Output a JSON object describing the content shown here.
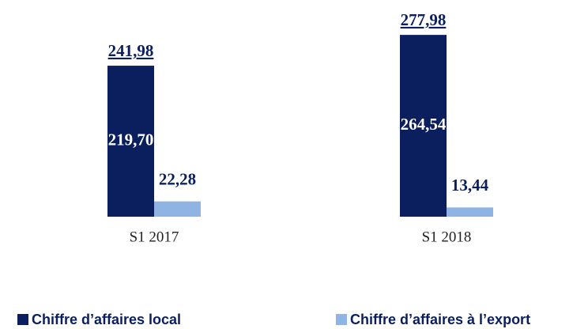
{
  "chart_data": {
    "type": "bar",
    "categories": [
      "S1 2017",
      "S1 2018"
    ],
    "series": [
      {
        "name": "Chiffre d’affaires local",
        "color": "#0b1f5e",
        "values": [
          219.7,
          264.54
        ],
        "value_labels": [
          "219,70",
          "264,54"
        ]
      },
      {
        "name": "Chiffre d’affaires à l’export",
        "color": "#8fb4e3",
        "values": [
          22.28,
          13.44
        ],
        "value_labels": [
          "22,28",
          "13,44"
        ]
      }
    ],
    "totals": {
      "values": [
        241.98,
        277.98
      ],
      "value_labels": [
        "241,98",
        "277,98"
      ]
    },
    "legend": "bottom"
  }
}
